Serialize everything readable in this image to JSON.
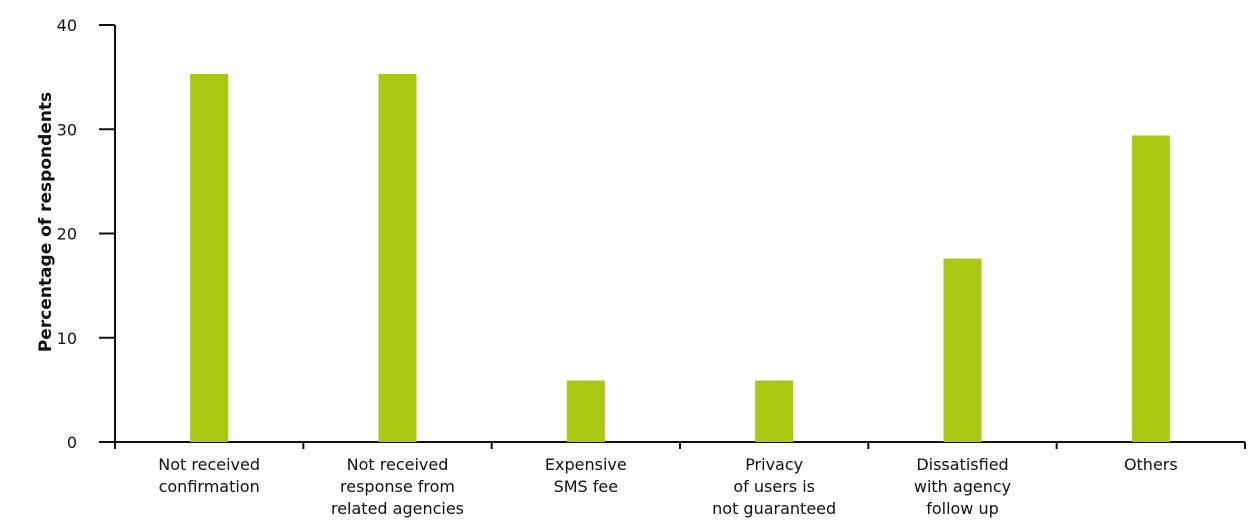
{
  "chart_data": {
    "type": "bar",
    "categories": [
      [
        "Not received",
        "confirmation"
      ],
      [
        "Not received",
        "response from",
        "related agencies"
      ],
      [
        "Expensive",
        "SMS fee"
      ],
      [
        "Privacy",
        "of users is",
        "not guaranteed"
      ],
      [
        "Dissatisfied",
        "with agency",
        "follow up"
      ],
      [
        "Others"
      ]
    ],
    "values": [
      35.3,
      35.3,
      5.9,
      5.9,
      17.6,
      29.4
    ],
    "xlabel": "",
    "ylabel": "Percentage of respondents",
    "ylim": [
      0,
      40
    ],
    "yticks": [
      0,
      10,
      20,
      30,
      40
    ],
    "grid": false,
    "legend": "none",
    "colors": {
      "bar": "#aac711",
      "axis": "#111111"
    }
  }
}
